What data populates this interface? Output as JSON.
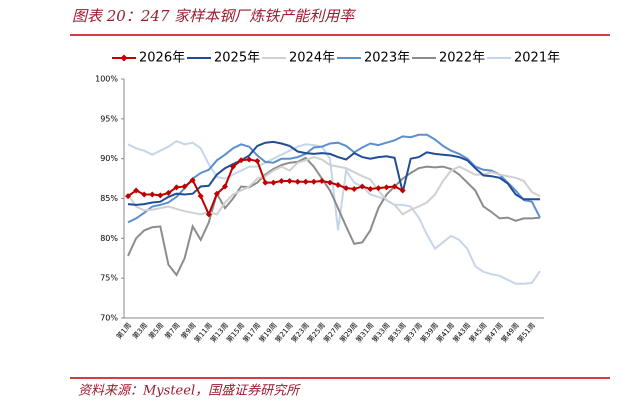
{
  "chart_data": {
    "type": "line",
    "title": "图表 20：247 家样本钢厂炼铁产能利用率",
    "source": "资料来源：Mysteel，国盛证券研究所",
    "categories": [
      "第1周",
      null,
      "第3周",
      null,
      "第5周",
      null,
      "第7周",
      null,
      "第9周",
      null,
      "第11周",
      null,
      "第13周",
      null,
      "第15周",
      null,
      "第17周",
      null,
      "第19周",
      null,
      "第21周",
      null,
      "第23周",
      null,
      "第25周",
      null,
      "第27周",
      null,
      "第29周",
      null,
      "第31周",
      null,
      "第33周",
      null,
      "第35周",
      null,
      "第37周",
      null,
      "第39周",
      null,
      "第41周",
      null,
      "第43周",
      null,
      "第45周",
      null,
      "第47周",
      null,
      "第49周",
      null,
      "第51周",
      null
    ],
    "series": [
      {
        "name": "2026年",
        "color": "#c00000",
        "marker": "diamond",
        "values": [
          85.3,
          86.0,
          85.5,
          85.5,
          85.4,
          85.7,
          86.4,
          86.5,
          87.3,
          85.3,
          83.0,
          85.6,
          86.5,
          89.0,
          89.8,
          89.9,
          89.7,
          87.0,
          87.0,
          87.2,
          87.2,
          87.1,
          87.1,
          87.1,
          87.2,
          87.0,
          86.7,
          86.3,
          86.2,
          86.5,
          86.2,
          86.3,
          86.4,
          86.5,
          86.0,
          null,
          null,
          null,
          null,
          null,
          null,
          null,
          null,
          null,
          null,
          null,
          null,
          null,
          null,
          null,
          null,
          null
        ]
      },
      {
        "name": "2025年",
        "color": "#1f4e96",
        "values": [
          84.3,
          84.2,
          84.3,
          84.5,
          84.6,
          85.2,
          85.6,
          85.5,
          85.6,
          86.5,
          86.6,
          88.0,
          88.8,
          89.3,
          89.8,
          90.4,
          91.6,
          92.0,
          92.1,
          91.9,
          91.6,
          90.9,
          90.7,
          90.6,
          90.7,
          90.6,
          90.2,
          89.9,
          90.7,
          90.2,
          90.0,
          90.2,
          90.3,
          90.1,
          85.8,
          90.0,
          90.2,
          90.8,
          90.6,
          90.5,
          90.4,
          90.2,
          89.8,
          88.8,
          87.9,
          87.8,
          87.6,
          86.9,
          85.5,
          84.9,
          84.9,
          84.9
        ]
      },
      {
        "name": "2024年",
        "color": "#d0d0d0",
        "values": [
          85.5,
          84.0,
          83.5,
          83.6,
          83.8,
          84.0,
          83.7,
          83.4,
          83.2,
          83.0,
          83.3,
          83.0,
          84.5,
          85.5,
          86.0,
          86.5,
          87.5,
          87.8,
          88.5,
          89.0,
          88.5,
          89.5,
          89.8,
          90.2,
          89.9,
          89.2,
          89.0,
          88.8,
          88.3,
          87.8,
          87.4,
          86.0,
          84.8,
          84.2,
          83.0,
          83.6,
          84.0,
          84.5,
          85.5,
          87.2,
          88.5,
          89.0,
          88.5,
          88.0,
          88.0,
          88.3,
          88.0,
          87.8,
          87.6,
          87.2,
          85.8,
          85.3
        ]
      },
      {
        "name": "2023年",
        "color": "#5b8fd0",
        "values": [
          82.0,
          82.5,
          83.2,
          84.0,
          84.2,
          84.5,
          85.2,
          86.3,
          87.5,
          88.2,
          88.6,
          89.8,
          90.5,
          91.3,
          91.8,
          91.5,
          90.4,
          89.6,
          89.5,
          90.0,
          90.0,
          90.2,
          90.6,
          91.4,
          91.5,
          91.9,
          92.0,
          91.6,
          90.8,
          91.4,
          91.9,
          91.7,
          92.0,
          92.3,
          92.8,
          92.7,
          93.0,
          93.0,
          92.4,
          91.6,
          91.0,
          90.6,
          90.0,
          89.0,
          88.6,
          88.5,
          88.0,
          87.0,
          86.0,
          84.8,
          84.6,
          82.6
        ]
      },
      {
        "name": "2022年",
        "color": "#8c8c8c",
        "values": [
          77.8,
          80.0,
          81.0,
          81.4,
          81.5,
          76.7,
          75.4,
          77.5,
          81.5,
          79.8,
          82.0,
          85.6,
          83.8,
          85.0,
          86.5,
          86.4,
          87.0,
          88.0,
          88.7,
          89.2,
          89.5,
          89.6,
          90.1,
          89.0,
          87.5,
          86.0,
          83.8,
          81.5,
          79.3,
          79.5,
          81.0,
          83.8,
          85.5,
          86.5,
          87.5,
          88.2,
          88.8,
          89.0,
          88.9,
          89.0,
          88.7,
          88.0,
          87.0,
          86.0,
          84.0,
          83.3,
          82.5,
          82.6,
          82.2,
          82.5,
          82.5,
          82.6
        ]
      },
      {
        "name": "2021年",
        "color": "#c5d5ea",
        "values": [
          91.8,
          91.3,
          91.0,
          90.5,
          91.0,
          91.5,
          92.2,
          91.8,
          92.0,
          91.3,
          89.3,
          87.7,
          87.5,
          88.0,
          88.5,
          89.0,
          89.0,
          89.5,
          90.0,
          90.5,
          91.0,
          91.5,
          91.8,
          91.7,
          91.5,
          90.0,
          81.0,
          88.5,
          87.0,
          86.5,
          85.5,
          85.2,
          84.8,
          84.2,
          84.2,
          84.0,
          82.6,
          80.5,
          78.7,
          79.5,
          80.3,
          79.8,
          78.7,
          76.5,
          75.8,
          75.5,
          75.3,
          74.8,
          74.3,
          74.3,
          74.4,
          75.9
        ]
      }
    ],
    "ylim": [
      70,
      100
    ],
    "yticks": [
      {
        "value": 70,
        "label": "70%"
      },
      {
        "value": 75,
        "label": "75%"
      },
      {
        "value": 80,
        "label": "80%"
      },
      {
        "value": 85,
        "label": "85%"
      },
      {
        "value": 90,
        "label": "90%"
      },
      {
        "value": 95,
        "label": "95%"
      },
      {
        "value": 100,
        "label": "100%"
      }
    ],
    "grid": false
  }
}
